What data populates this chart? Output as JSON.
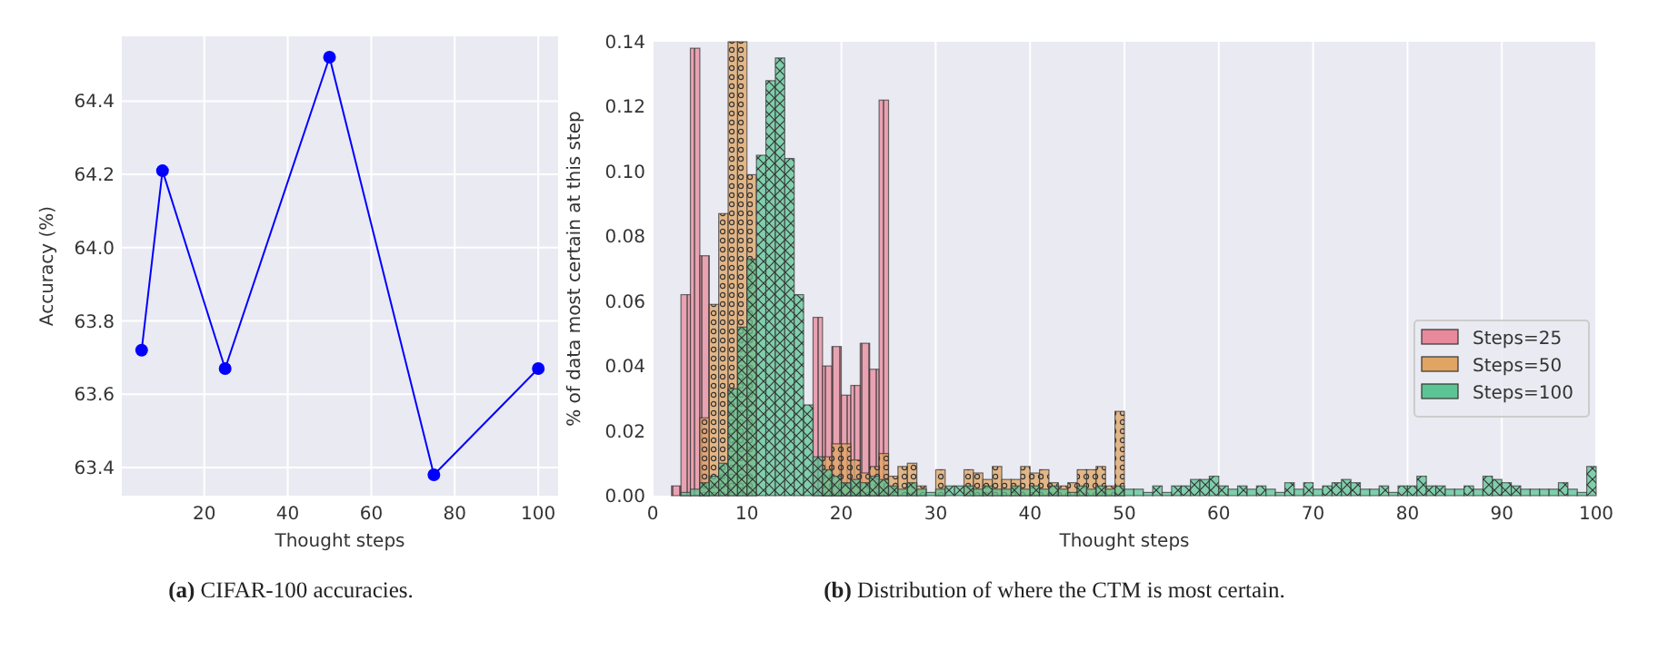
{
  "chart_data": [
    {
      "type": "line",
      "xlabel": "Thought steps",
      "ylabel": "Accuracy (%)",
      "annotations": [
        "(a) CIFAR-100 accuracies."
      ],
      "x": [
        5,
        10,
        25,
        50,
        75,
        100
      ],
      "series": [
        {
          "color": "#0000ff",
          "values": [
            63.72,
            64.21,
            63.67,
            64.52,
            63.38,
            63.67
          ]
        }
      ],
      "marker": "circle",
      "line_style": "solid",
      "grid": true,
      "xlim": [
        0.25,
        104.75
      ],
      "xticks": [
        20,
        40,
        60,
        80,
        100
      ],
      "ylim": [
        63.323,
        64.577
      ],
      "yticks": [
        63.4,
        63.6,
        63.8,
        {
          "value": 64,
          "label": "64.0"
        },
        64.2,
        64.4
      ]
    },
    {
      "type": "histogram",
      "xlabel": "Thought steps",
      "ylabel": "% of data most certain at this step",
      "annotations": [
        "(b) Distribution of where the CTM is most certain."
      ],
      "bins": [
        0,
        1,
        2,
        3,
        4,
        5,
        6,
        7,
        8,
        9,
        10,
        11,
        12,
        13,
        14,
        15,
        16,
        17,
        18,
        19,
        20,
        21,
        22,
        23,
        24,
        25,
        26,
        27,
        28,
        29,
        30,
        31,
        32,
        33,
        34,
        35,
        36,
        37,
        38,
        39,
        40,
        41,
        42,
        43,
        44,
        45,
        46,
        47,
        48,
        49,
        50,
        51,
        52,
        53,
        54,
        55,
        56,
        57,
        58,
        59,
        60,
        61,
        62,
        63,
        64,
        65,
        66,
        67,
        68,
        69,
        70,
        71,
        72,
        73,
        74,
        75,
        76,
        77,
        78,
        79,
        80,
        81,
        82,
        83,
        84,
        85,
        86,
        87,
        88,
        89,
        90,
        91,
        92,
        93,
        94,
        95,
        96,
        97,
        98,
        99,
        100
      ],
      "series": [
        {
          "name": "Steps=25",
          "color": "#e8899c",
          "values": [
            0,
            0,
            0.003,
            0.062,
            0.138,
            0.074,
            null,
            null,
            null,
            null,
            null,
            null,
            null,
            null,
            null,
            null,
            null,
            0.055,
            0.04,
            0.046,
            0.031,
            0.034,
            0.047,
            0.039,
            0.122,
            0,
            0,
            0,
            0,
            0,
            0,
            0,
            0,
            0,
            0,
            0,
            0,
            0,
            0,
            0,
            0,
            0,
            0,
            0,
            0,
            0,
            0,
            0,
            0,
            0,
            0,
            0,
            0,
            0,
            0,
            0,
            0,
            0,
            0,
            0,
            0,
            0,
            0,
            0,
            0,
            0,
            0,
            0,
            0,
            0,
            0,
            0,
            0,
            0,
            0,
            0,
            0,
            0,
            0,
            0,
            0,
            0,
            0,
            0,
            0,
            0,
            0,
            0,
            0,
            0,
            0,
            0,
            0,
            0,
            0,
            0,
            0,
            0,
            0,
            0
          ]
        },
        {
          "name": "Steps=50",
          "color": "#e0a463",
          "values": [
            0,
            0,
            0,
            0,
            0,
            0.024,
            0.059,
            0.087,
            0.14,
            0.14,
            0.099,
            null,
            null,
            null,
            null,
            null,
            null,
            null,
            0.012,
            0.016,
            0.016,
            0.011,
            0.007,
            0.009,
            0.013,
            0.006,
            0.009,
            0.01,
            0.003,
            0,
            0.008,
            null,
            null,
            0.008,
            0.007,
            0.005,
            0.009,
            0.005,
            0.005,
            0.009,
            0.007,
            0.008,
            0.004,
            0.003,
            0.004,
            0.008,
            0.008,
            0.009,
            0.003,
            0.026,
            0,
            0,
            0,
            0,
            0,
            0,
            0,
            0,
            0,
            0,
            0,
            0,
            0,
            0,
            0,
            0,
            0,
            0,
            0,
            0,
            0,
            0,
            0,
            0,
            0,
            0,
            0,
            0,
            0,
            0,
            0,
            0,
            0,
            0,
            0,
            0,
            0,
            0,
            0,
            0,
            0,
            0,
            0,
            0,
            0,
            0,
            0,
            0,
            0,
            0
          ]
        },
        {
          "name": "Steps=100",
          "color": "#5cc494",
          "values": [
            0,
            0,
            0,
            0.001,
            0.002,
            0.004,
            0.006,
            0.01,
            0.033,
            0.052,
            0.073,
            0.105,
            0.128,
            0.135,
            0.104,
            0.062,
            0.028,
            0.012,
            0.008,
            0.006,
            0.004,
            0.005,
            0.004,
            0.006,
            0.005,
            0.003,
            0.002,
            0.004,
            0.002,
            0.001,
            0.002,
            0.003,
            0.003,
            0.003,
            0.002,
            0.003,
            0.002,
            0.002,
            0.003,
            0.002,
            0.003,
            0.002,
            0.003,
            0.002,
            0.001,
            0.003,
            0.002,
            0.003,
            0.002,
            0.003,
            0.002,
            0.002,
            0.001,
            0.003,
            0.001,
            0.003,
            0.003,
            0.005,
            0.005,
            0.006,
            0.003,
            0.002,
            0.003,
            0.002,
            0.003,
            0.002,
            0.001,
            0.004,
            0.002,
            0.004,
            0.002,
            0.003,
            0.004,
            0.005,
            0.004,
            0.002,
            0.002,
            0.003,
            0.001,
            0.003,
            0.003,
            0.006,
            0.003,
            0.003,
            0.002,
            0.002,
            0.003,
            0.002,
            0.006,
            0.005,
            0.004,
            0.003,
            0.002,
            0.002,
            0.002,
            0.002,
            0.004,
            0.002,
            0.001,
            0.009
          ]
        }
      ],
      "legend": "right",
      "grid": "x",
      "xlim": [
        0,
        100
      ],
      "xticks": [
        0,
        10,
        20,
        30,
        40,
        50,
        60,
        70,
        80,
        90,
        100
      ],
      "ylim": [
        0,
        0.14
      ],
      "yticks": [
        {
          "value": 0,
          "label": "0.00"
        },
        {
          "value": 0.02,
          "label": "0.02"
        },
        {
          "value": 0.04,
          "label": "0.04"
        },
        {
          "value": 0.06,
          "label": "0.06"
        },
        {
          "value": 0.08,
          "label": "0.08"
        },
        {
          "value": 0.1,
          "label": "0.10"
        },
        {
          "value": 0.12,
          "label": "0.12"
        },
        {
          "value": 0.14,
          "label": "0.14"
        }
      ]
    }
  ]
}
